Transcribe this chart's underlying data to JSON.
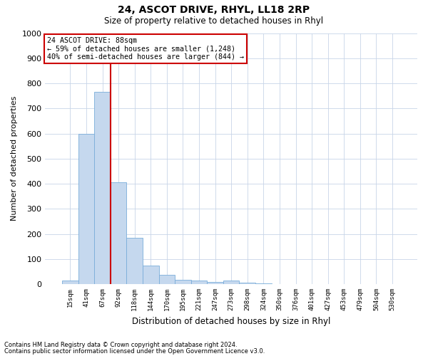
{
  "title": "24, ASCOT DRIVE, RHYL, LL18 2RP",
  "subtitle": "Size of property relative to detached houses in Rhyl",
  "xlabel": "Distribution of detached houses by size in Rhyl",
  "ylabel": "Number of detached properties",
  "categories": [
    "15sqm",
    "41sqm",
    "67sqm",
    "92sqm",
    "118sqm",
    "144sqm",
    "170sqm",
    "195sqm",
    "221sqm",
    "247sqm",
    "273sqm",
    "298sqm",
    "324sqm",
    "350sqm",
    "376sqm",
    "401sqm",
    "427sqm",
    "453sqm",
    "479sqm",
    "504sqm",
    "530sqm"
  ],
  "values": [
    14,
    600,
    765,
    405,
    185,
    75,
    38,
    17,
    13,
    10,
    13,
    5,
    3,
    0,
    0,
    0,
    0,
    0,
    0,
    0,
    0
  ],
  "bar_color": "#c5d8ee",
  "bar_edge_color": "#7aadda",
  "highlight_line_index": 3,
  "highlight_color": "#cc0000",
  "ylim": [
    0,
    1000
  ],
  "yticks": [
    0,
    100,
    200,
    300,
    400,
    500,
    600,
    700,
    800,
    900,
    1000
  ],
  "annotation_title": "24 ASCOT DRIVE: 88sqm",
  "annotation_line1": "← 59% of detached houses are smaller (1,248)",
  "annotation_line2": "40% of semi-detached houses are larger (844) →",
  "annotation_box_color": "#cc0000",
  "footnote1": "Contains HM Land Registry data © Crown copyright and database right 2024.",
  "footnote2": "Contains public sector information licensed under the Open Government Licence v3.0.",
  "background_color": "#ffffff",
  "grid_color": "#c8d4e8"
}
